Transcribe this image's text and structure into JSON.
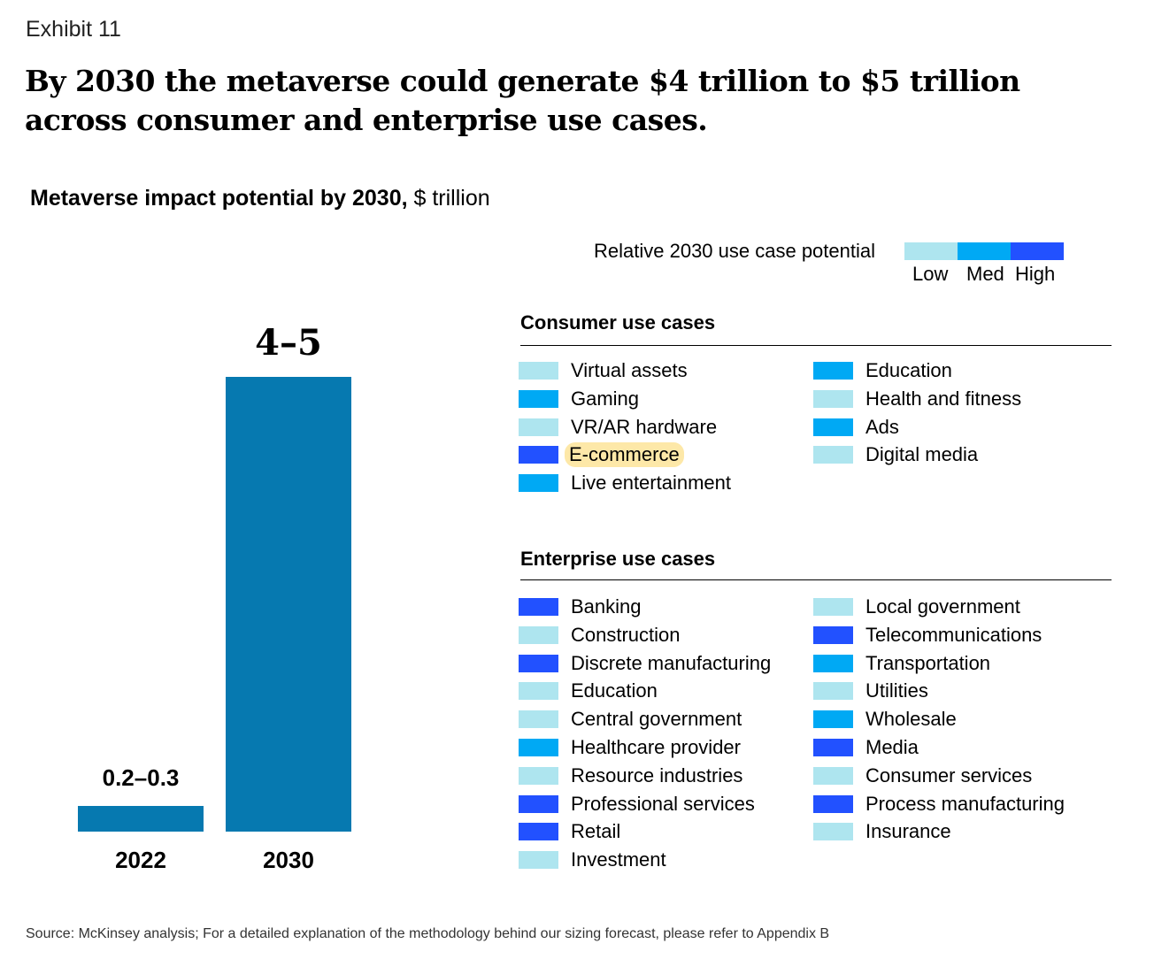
{
  "exhibit": "Exhibit 11",
  "title": "By 2030 the metaverse could generate $4 trillion to $5 trillion across consumer and enterprise use cases.",
  "subtitle_bold": "Metaverse impact potential by 2030,",
  "subtitle_unit": " $ trillion",
  "colors": {
    "bar": "#0679b0",
    "Low": "#aee5ef",
    "Med": "#00a9f4",
    "High": "#2251ff",
    "highlight": "#fde8a8"
  },
  "chart_data": {
    "type": "bar",
    "categories": [
      "2022",
      "2030"
    ],
    "values": [
      0.25,
      4.5
    ],
    "data_labels": [
      "0.2–0.3",
      "4–5"
    ],
    "ranges": [
      [
        0.2,
        0.3
      ],
      [
        4,
        5
      ]
    ],
    "title": "Metaverse impact potential by 2030, $ trillion",
    "xlabel": "",
    "ylabel": "$ trillion",
    "ylim": [
      0,
      4.5
    ]
  },
  "legend": {
    "title": "Relative 2030 use case potential",
    "levels": [
      "Low",
      "Med",
      "High"
    ]
  },
  "consumer": {
    "heading": "Consumer use cases",
    "items": [
      {
        "label": "Virtual assets",
        "level": "Low"
      },
      {
        "label": "Gaming",
        "level": "Med"
      },
      {
        "label": "VR/AR hardware",
        "level": "Low"
      },
      {
        "label": "E-commerce",
        "level": "High",
        "highlighted": true
      },
      {
        "label": "Live entertainment",
        "level": "Med"
      },
      {
        "label": "Education",
        "level": "Med"
      },
      {
        "label": "Health and fitness",
        "level": "Low"
      },
      {
        "label": "Ads",
        "level": "Med"
      },
      {
        "label": "Digital media",
        "level": "Low"
      }
    ]
  },
  "enterprise": {
    "heading": "Enterprise use cases",
    "items": [
      {
        "label": "Banking",
        "level": "High"
      },
      {
        "label": "Construction",
        "level": "Low"
      },
      {
        "label": "Discrete manufacturing",
        "level": "High"
      },
      {
        "label": "Education",
        "level": "Low"
      },
      {
        "label": "Central government",
        "level": "Low"
      },
      {
        "label": "Healthcare provider",
        "level": "Med"
      },
      {
        "label": "Resource industries",
        "level": "Low"
      },
      {
        "label": "Professional services",
        "level": "High"
      },
      {
        "label": "Retail",
        "level": "High"
      },
      {
        "label": "Investment",
        "level": "Low"
      },
      {
        "label": "Local government",
        "level": "Low"
      },
      {
        "label": "Telecommunications",
        "level": "High"
      },
      {
        "label": "Transportation",
        "level": "Med"
      },
      {
        "label": "Utilities",
        "level": "Low"
      },
      {
        "label": "Wholesale",
        "level": "Med"
      },
      {
        "label": "Media",
        "level": "High"
      },
      {
        "label": "Consumer services",
        "level": "Low"
      },
      {
        "label": "Process manufacturing",
        "level": "High"
      },
      {
        "label": "Insurance",
        "level": "Low"
      }
    ]
  },
  "source": "Source: McKinsey analysis; For a detailed explanation of the methodology behind our sizing forecast, please refer to Appendix B"
}
